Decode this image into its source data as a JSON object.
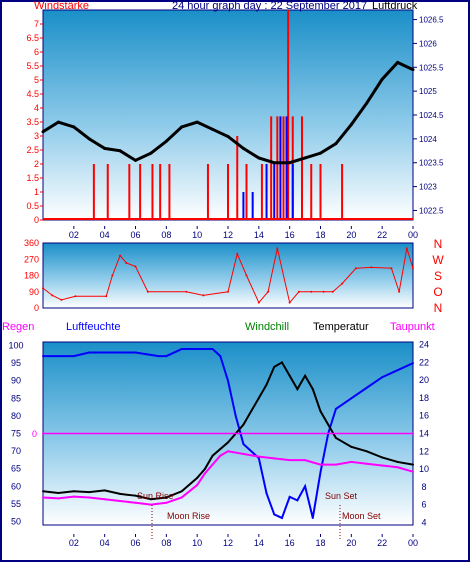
{
  "header": {
    "left_label": "Windstärke",
    "center_title": "24 hour graph day : 22 September 2017",
    "right_label": "Luftdruck"
  },
  "colors": {
    "navy": "#000080",
    "red": "#ff0000",
    "blue": "#0000ff",
    "black": "#000000",
    "magenta": "#ff00ff",
    "green": "#008000",
    "plot_bg_top": "#1a8fc8",
    "plot_bg_bottom": "#ffffff"
  },
  "hour_ticks": [
    "02",
    "04",
    "06",
    "08",
    "10",
    "12",
    "14",
    "16",
    "18",
    "20",
    "22",
    "00"
  ],
  "direction_labels": [
    "N",
    "W",
    "S",
    "O",
    "N"
  ],
  "bottom_legend": {
    "regen": "Regen",
    "luftfeuchte": "Luftfeuchte",
    "windchill": "Windchill",
    "temperatur": "Temperatur",
    "taupunkt": "Taupunkt"
  },
  "annotations": {
    "sun_rise": "Sun Rise",
    "sun_set": "Sun Set",
    "moon_rise": "Moon Rise",
    "moon_set": "Moon Set",
    "regen_marker": "0"
  },
  "chart_data": [
    {
      "type": "line",
      "panel": "wind_and_pressure",
      "x_unit": "hour",
      "xlim": [
        0,
        24
      ],
      "y_left": {
        "label": "Windstärke",
        "ticks": [
          "0",
          "0.5",
          "1",
          "1.5",
          "2",
          "2.5",
          "3",
          "3.5",
          "4",
          "4.5",
          "5",
          "5.5",
          "6",
          "6.5",
          "7"
        ],
        "lim": [
          0,
          7.5
        ]
      },
      "y_right": {
        "label": "Luftdruck",
        "ticks": [
          "1022.5",
          "1023",
          "1023.5",
          "1024",
          "1024.5",
          "1025",
          "1025.5",
          "1026",
          "1026.5"
        ],
        "lim": [
          1022.3,
          1026.7
        ]
      },
      "series": [
        {
          "name": "Luftdruck",
          "color": "#000000",
          "x": [
            0,
            1,
            2,
            3,
            4,
            5,
            6,
            7,
            8,
            9,
            10,
            11,
            12,
            13,
            14,
            15,
            16,
            17,
            18,
            19,
            20,
            21,
            22,
            23,
            24
          ],
          "y": [
            1024.15,
            1024.35,
            1024.25,
            1024.0,
            1023.8,
            1023.75,
            1023.55,
            1023.7,
            1023.95,
            1024.25,
            1024.35,
            1024.2,
            1024.05,
            1023.8,
            1023.6,
            1023.5,
            1023.5,
            1023.6,
            1023.7,
            1023.9,
            1024.3,
            1024.75,
            1025.25,
            1025.6,
            1025.45
          ]
        },
        {
          "name": "Windstärke (max)",
          "color": "#ff0000",
          "x": [
            0,
            2.7,
            3.3,
            4.2,
            5.6,
            6.3,
            7.1,
            7.6,
            8.2,
            9.5,
            10.7,
            12.0,
            12.6,
            13.2,
            14.2,
            14.8,
            15.2,
            15.6,
            15.9,
            16.2,
            16.8,
            17.4,
            18.0,
            19.4,
            20.0
          ],
          "y": [
            0,
            0,
            2,
            2,
            2,
            2,
            2,
            2,
            2,
            0,
            2,
            2,
            3,
            2,
            2,
            3.7,
            3.7,
            3.7,
            7.5,
            3.7,
            3.7,
            2,
            2,
            2,
            0
          ]
        },
        {
          "name": "Windstärke (avg)",
          "color": "#0000ff",
          "x": [
            12.0,
            13.0,
            13.6,
            14.5,
            15.0,
            15.4,
            15.8,
            16.2,
            16.6
          ],
          "y": [
            0,
            1,
            1,
            2,
            2,
            3.7,
            3.7,
            2,
            0
          ]
        }
      ]
    },
    {
      "type": "line",
      "panel": "wind_direction",
      "x_unit": "hour",
      "xlim": [
        0,
        24
      ],
      "y": {
        "ticks": [
          "0",
          "90",
          "180",
          "270",
          "360"
        ],
        "lim": [
          0,
          360
        ]
      },
      "series": [
        {
          "name": "Windrichtung",
          "color": "#ff0000",
          "x": [
            0,
            0.6,
            1.2,
            2.1,
            4.1,
            4.5,
            5.0,
            5.4,
            6.0,
            6.8,
            9.3,
            10.4,
            12.0,
            12.6,
            13.2,
            14.0,
            14.6,
            15.2,
            16.0,
            16.6,
            17.4,
            18.2,
            18.8,
            19.4,
            20.3,
            21.3,
            22.6,
            23.1,
            23.6,
            24
          ],
          "y": [
            110,
            70,
            45,
            65,
            65,
            180,
            290,
            250,
            230,
            90,
            90,
            70,
            90,
            300,
            180,
            30,
            90,
            330,
            30,
            90,
            90,
            90,
            90,
            135,
            220,
            225,
            220,
            90,
            330,
            220
          ]
        }
      ]
    },
    {
      "type": "line",
      "panel": "humidity_temperature",
      "x_unit": "hour",
      "xlim": [
        0,
        24
      ],
      "y_left": {
        "label": "Luftfeuchte",
        "ticks": [
          "50",
          "55",
          "60",
          "65",
          "70",
          "75",
          "80",
          "85",
          "90",
          "95",
          "100"
        ],
        "lim": [
          49,
          101
        ]
      },
      "y_right": {
        "label": "Temperatur",
        "ticks": [
          "4",
          "6",
          "8",
          "10",
          "12",
          "14",
          "16",
          "18",
          "20",
          "22",
          "24"
        ],
        "lim": [
          3.7,
          24.3
        ]
      },
      "series": [
        {
          "name": "Luftfeuchte",
          "color": "#0000ff",
          "axis": "left",
          "x": [
            0,
            2.0,
            3.0,
            6.0,
            7.5,
            8.0,
            9.0,
            10.0,
            11.0,
            11.5,
            12.0,
            12.5,
            13.0,
            14.0,
            14.5,
            15.0,
            15.5,
            16.0,
            16.5,
            17.0,
            17.5,
            18.0,
            18.5,
            19.0,
            20.0,
            21.0,
            22.0,
            23.0,
            24
          ],
          "y": [
            97,
            97,
            98,
            98,
            97,
            97,
            99,
            99,
            99,
            97,
            90,
            80,
            72,
            68,
            58,
            52,
            51,
            57,
            56,
            60,
            51,
            64,
            75,
            82,
            85,
            88,
            91,
            93,
            95
          ]
        },
        {
          "name": "Temperatur",
          "color": "#000000",
          "axis": "right",
          "x": [
            0,
            1,
            2,
            3,
            4,
            5,
            6,
            7,
            8,
            9,
            10,
            10.5,
            11,
            12,
            13,
            13.5,
            14,
            14.5,
            15,
            15.5,
            16,
            16.5,
            17,
            17.5,
            18,
            18.5,
            19,
            20,
            21,
            22,
            23,
            24
          ],
          "y": [
            7.5,
            7.3,
            7.5,
            7.4,
            7.6,
            7.2,
            7.0,
            6.6,
            6.8,
            7.5,
            9.0,
            10.0,
            11.5,
            13.0,
            15.0,
            16.5,
            18.0,
            19.5,
            21.5,
            22.0,
            20.5,
            19.0,
            20.5,
            19.0,
            16.5,
            15.0,
            13.5,
            12.5,
            12.0,
            11.3,
            10.8,
            10.5
          ]
        },
        {
          "name": "Windchill",
          "color": "#008000",
          "axis": "right",
          "x": [
            0,
            24
          ],
          "y": [
            7.5,
            10.5
          ]
        },
        {
          "name": "Taupunkt",
          "color": "#ff00ff",
          "axis": "right",
          "x": [
            0,
            1,
            2,
            3,
            4,
            5,
            6,
            7,
            8,
            9,
            10,
            10.5,
            11,
            11.5,
            12,
            13,
            14,
            15,
            16,
            17,
            18,
            19,
            20,
            21,
            22,
            23,
            24
          ],
          "y": [
            6.8,
            6.7,
            6.9,
            6.8,
            6.6,
            6.4,
            6.2,
            6.0,
            6.2,
            6.8,
            8.2,
            9.5,
            10.5,
            11.5,
            12.0,
            11.7,
            11.4,
            11.2,
            11.0,
            11.0,
            10.5,
            10.5,
            10.8,
            10.6,
            10.4,
            10.2,
            9.7
          ]
        },
        {
          "name": "Regen",
          "color": "#ff00ff",
          "axis": "left",
          "x": [
            0,
            24
          ],
          "y": [
            75,
            75
          ]
        }
      ]
    }
  ]
}
